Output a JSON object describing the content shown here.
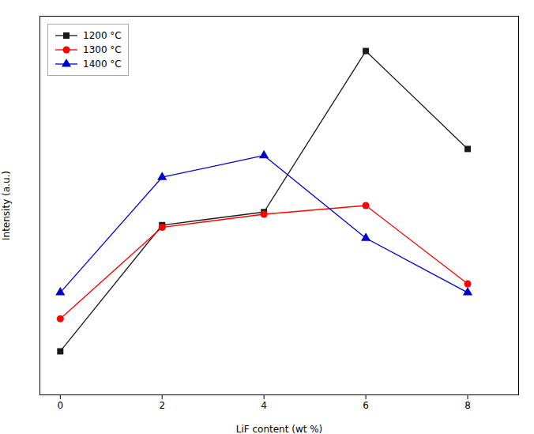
{
  "chart_data": {
    "type": "line",
    "x": [
      0,
      2,
      4,
      6,
      8
    ],
    "series": [
      {
        "name": "1200 °C",
        "color": "#1a1a1a",
        "marker": "square",
        "values": [
          100,
          390,
          420,
          790,
          565
        ]
      },
      {
        "name": "1300 °C",
        "color": "#ff0000",
        "marker": "circle",
        "values": [
          175,
          385,
          415,
          435,
          255
        ]
      },
      {
        "name": "1400 °C",
        "color": "#0000cc",
        "marker": "triangle",
        "values": [
          235,
          500,
          550,
          360,
          235
        ]
      }
    ],
    "xlabel": "LiF content (wt %)",
    "ylabel": "Intensity (a.u.)",
    "xlim": [
      -0.4,
      9.0
    ],
    "ylim": [
      0,
      870
    ],
    "xticks": [
      0,
      2,
      4,
      6,
      8
    ],
    "tick_labels": "x",
    "legend": "upper left"
  }
}
